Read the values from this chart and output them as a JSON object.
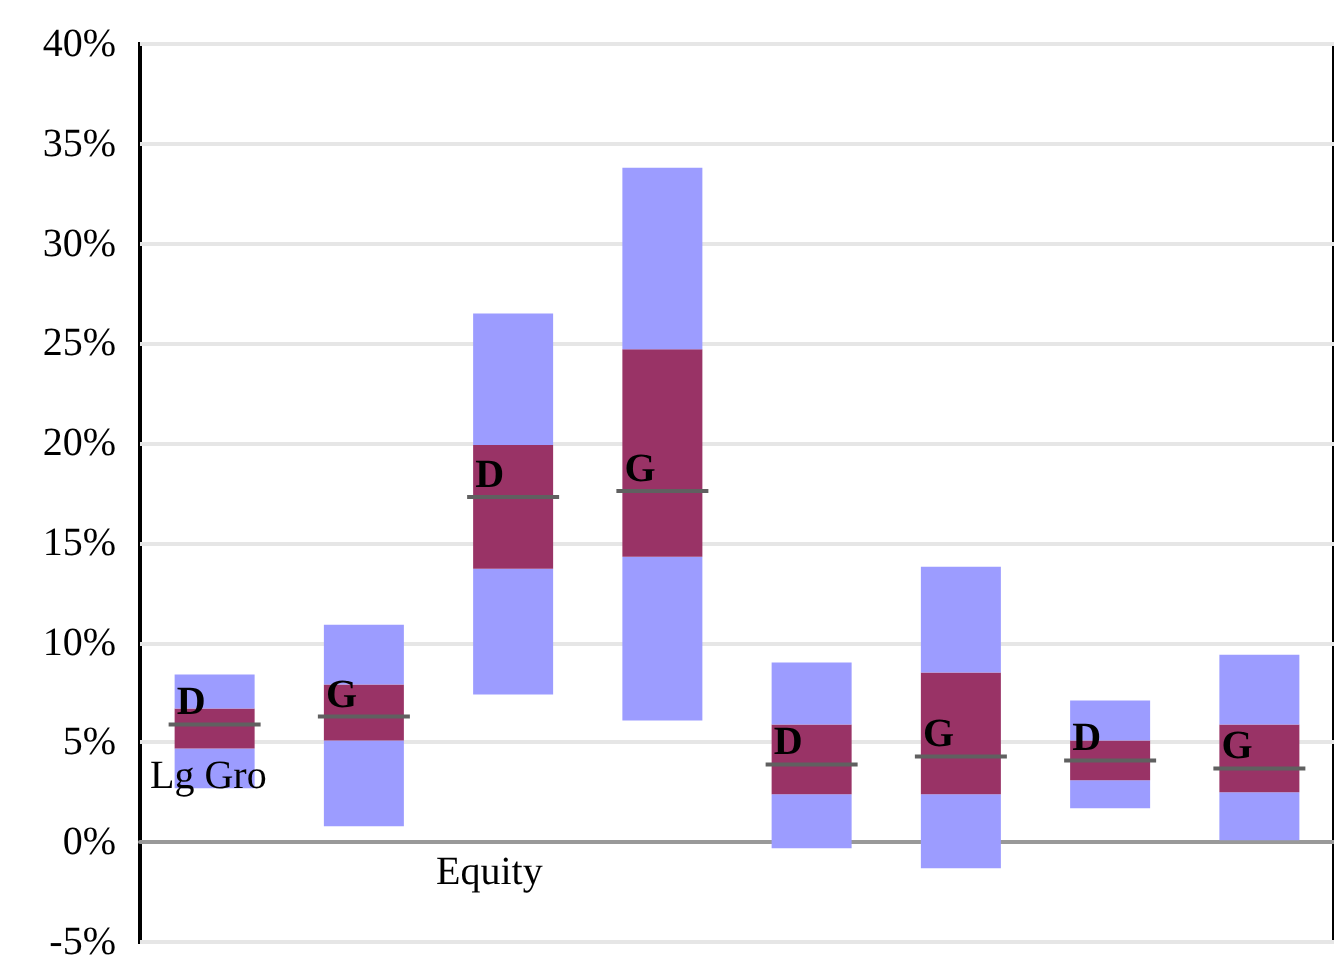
{
  "chart_data": {
    "type": "bar",
    "categories": [
      null,
      null,
      null,
      null,
      null,
      null,
      null,
      null
    ],
    "series": [
      {
        "color": "#9c9cff",
        "base": [
          2.7,
          0.8,
          7.4,
          6.1,
          -0.3,
          -1.3,
          1.7,
          0.1
        ],
        "values": [
          2.0,
          4.3,
          6.3,
          8.2,
          2.7,
          3.7,
          1.4,
          2.4
        ]
      },
      {
        "color": "#993366",
        "base": [
          4.7,
          5.1,
          13.7,
          14.3,
          2.4,
          2.4,
          3.1,
          2.5
        ],
        "values": [
          1.2,
          1.2,
          3.6,
          3.3,
          1.5,
          1.9,
          1.0,
          1.2
        ]
      },
      {
        "color": "#993366",
        "base": [
          5.9,
          6.3,
          17.3,
          17.6,
          3.9,
          4.3,
          4.1,
          3.7
        ],
        "values": [
          0.8,
          1.6,
          2.6,
          7.1,
          2.0,
          4.2,
          1.0,
          2.2
        ]
      },
      {
        "color": "#9c9cff",
        "base": [
          6.7,
          7.9,
          19.9,
          24.7,
          5.9,
          8.5,
          5.1,
          5.9
        ],
        "values": [
          1.7,
          3.0,
          6.6,
          9.1,
          3.1,
          5.3,
          2.0,
          3.5
        ]
      }
    ],
    "ylim": [
      -5,
      40
    ],
    "yticks": [
      {
        "value": -5,
        "label": "-5%"
      },
      {
        "value": 0,
        "label": "0%"
      },
      {
        "value": 5,
        "label": "5%"
      },
      {
        "value": 10,
        "label": "10%"
      },
      {
        "value": 15,
        "label": "15%"
      },
      {
        "value": 20,
        "label": "20%"
      },
      {
        "value": 25,
        "label": "25%"
      },
      {
        "value": 30,
        "label": "30%"
      },
      {
        "value": 35,
        "label": "35%"
      },
      {
        "value": 40,
        "label": "40%"
      }
    ],
    "grid": "y",
    "annotations": [
      "Lg Gro",
      "Equity",
      "D",
      "G",
      "D",
      "G",
      "D",
      "G",
      "D",
      "G"
    ]
  }
}
